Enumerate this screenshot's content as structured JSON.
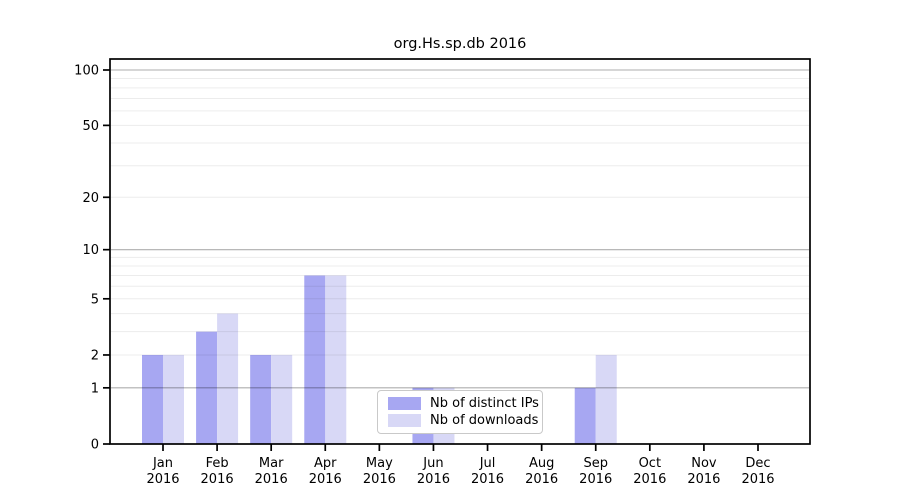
{
  "chart_data": {
    "type": "bar",
    "title": "org.Hs.sp.db 2016",
    "y_scale": "log1p",
    "ylim": [
      0,
      100
    ],
    "grid": true,
    "x_categories": [
      {
        "month": "Jan",
        "year": "2016"
      },
      {
        "month": "Feb",
        "year": "2016"
      },
      {
        "month": "Mar",
        "year": "2016"
      },
      {
        "month": "Apr",
        "year": "2016"
      },
      {
        "month": "May",
        "year": "2016"
      },
      {
        "month": "Jun",
        "year": "2016"
      },
      {
        "month": "Jul",
        "year": "2016"
      },
      {
        "month": "Aug",
        "year": "2016"
      },
      {
        "month": "Sep",
        "year": "2016"
      },
      {
        "month": "Oct",
        "year": "2016"
      },
      {
        "month": "Nov",
        "year": "2016"
      },
      {
        "month": "Dec",
        "year": "2016"
      }
    ],
    "series": [
      {
        "name": "Nb of distinct IPs",
        "color": "#a7a7f2",
        "values": [
          2,
          3,
          2,
          7,
          0,
          1,
          0,
          0,
          1,
          0,
          0,
          0
        ]
      },
      {
        "name": "Nb of downloads",
        "color": "#d8d8f6",
        "values": [
          2,
          4,
          2,
          7,
          0,
          1,
          0,
          0,
          2,
          0,
          0,
          0
        ]
      }
    ],
    "y_ticks": [
      0,
      1,
      2,
      5,
      10,
      20,
      50,
      100
    ],
    "major_gridlines": [
      1,
      10,
      100
    ],
    "minor_gridlines": [
      2,
      3,
      4,
      5,
      6,
      7,
      8,
      9,
      20,
      30,
      40,
      50,
      60,
      70,
      80,
      90
    ],
    "legend_position": "bottom-center",
    "frame_color": "#000000",
    "major_grid_color": "#b0b0b0",
    "minor_grid_color": "#e9e9e9"
  }
}
